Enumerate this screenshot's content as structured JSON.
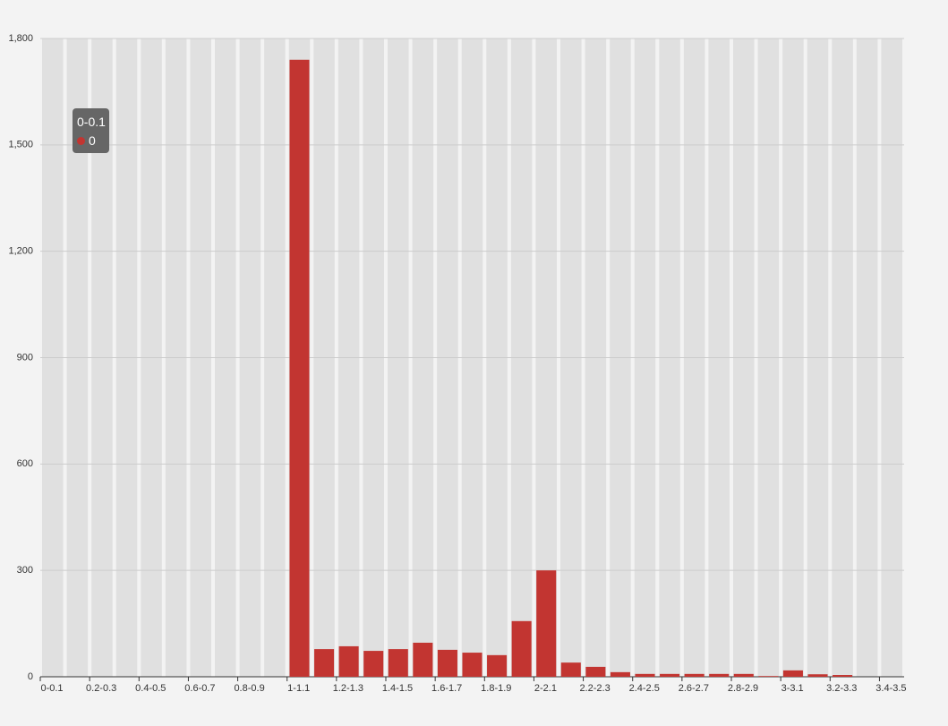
{
  "chart_data": {
    "type": "bar",
    "categories": [
      "0-0.1",
      null,
      "0.2-0.3",
      null,
      "0.4-0.5",
      null,
      "0.6-0.7",
      null,
      "0.8-0.9",
      null,
      "1-1.1",
      null,
      "1.2-1.3",
      null,
      "1.4-1.5",
      null,
      "1.6-1.7",
      null,
      "1.8-1.9",
      null,
      "2-2.1",
      null,
      "2.2-2.3",
      null,
      "2.4-2.5",
      null,
      "2.6-2.7",
      null,
      "2.8-2.9",
      null,
      "3-3.1",
      null,
      "3.2-3.3",
      null,
      "3.4-3.5"
    ],
    "values": [
      0,
      0,
      0,
      0,
      0,
      0,
      0,
      0,
      0,
      0,
      1740,
      78,
      86,
      73,
      78,
      96,
      76,
      68,
      61,
      157,
      300,
      40,
      28,
      13,
      8,
      8,
      8,
      8,
      8,
      2,
      18,
      7,
      5,
      0,
      0
    ],
    "color": "#c23531",
    "ylim": [
      0,
      1800
    ],
    "yticks": [
      0,
      300,
      600,
      900,
      {
        "value": 1200,
        "label": "1,200"
      },
      {
        "value": 1500,
        "label": "1,500"
      },
      {
        "value": 1800,
        "label": "1,800"
      }
    ],
    "grid": true
  }
}
